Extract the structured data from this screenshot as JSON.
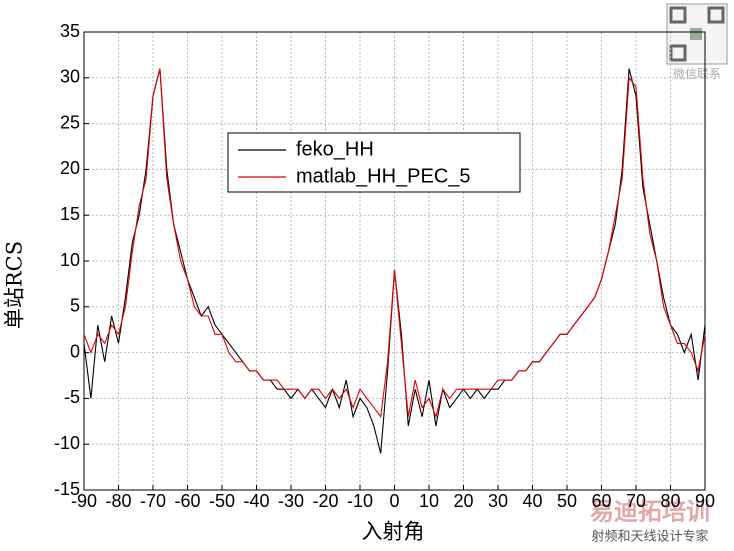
{
  "chart_data": {
    "type": "line",
    "xlabel": "入射角",
    "ylabel": "单站RCS",
    "x": [
      -90,
      -88,
      -86,
      -84,
      -82,
      -80,
      -78,
      -76,
      -74,
      -72,
      -70,
      -68,
      -66,
      -64,
      -62,
      -60,
      -58,
      -56,
      -54,
      -52,
      -50,
      -48,
      -46,
      -44,
      -42,
      -40,
      -38,
      -36,
      -34,
      -32,
      -30,
      -28,
      -26,
      -24,
      -22,
      -20,
      -18,
      -16,
      -14,
      -12,
      -10,
      -8,
      -6,
      -4,
      -2,
      0,
      2,
      4,
      6,
      8,
      10,
      12,
      14,
      16,
      18,
      20,
      22,
      24,
      26,
      28,
      30,
      32,
      34,
      36,
      38,
      40,
      42,
      44,
      46,
      48,
      50,
      52,
      54,
      56,
      58,
      60,
      62,
      64,
      66,
      68,
      70,
      72,
      74,
      76,
      78,
      80,
      82,
      84,
      86,
      88,
      90
    ],
    "series": [
      {
        "name": "feko_HH",
        "color": "#000000",
        "values": [
          1,
          -5,
          3,
          -1,
          4,
          1,
          6,
          12,
          15,
          20,
          28,
          31,
          20,
          14,
          11,
          8,
          6,
          4,
          5,
          3,
          2,
          1,
          0,
          -1,
          -2,
          -2,
          -3,
          -3,
          -4,
          -4,
          -5,
          -4,
          -5,
          -4,
          -5,
          -6,
          -4,
          -6,
          -3,
          -7,
          -5,
          -6,
          -8,
          -11,
          -2,
          9,
          2,
          -8,
          -4,
          -7,
          -3,
          -8,
          -4,
          -6,
          -5,
          -4,
          -5,
          -4,
          -5,
          -4,
          -4,
          -3,
          -3,
          -2,
          -2,
          -1,
          -1,
          0,
          1,
          2,
          2,
          3,
          4,
          5,
          6,
          8,
          11,
          14,
          20,
          31,
          28,
          18,
          14,
          10,
          6,
          3,
          2,
          0,
          2,
          -3,
          3
        ]
      },
      {
        "name": "matlab_HH_PEC_5",
        "color": "#e00000",
        "values": [
          2,
          0,
          2,
          1,
          3,
          2,
          5,
          11,
          16,
          19,
          28,
          31,
          19,
          14,
          10,
          8,
          5,
          4,
          4,
          2,
          2,
          0,
          -1,
          -1,
          -2,
          -2,
          -3,
          -3,
          -3,
          -4,
          -4,
          -4,
          -5,
          -4,
          -4,
          -5,
          -4,
          -5,
          -4,
          -6,
          -4,
          -5,
          -6,
          -7,
          -1,
          9,
          1,
          -7,
          -3,
          -6,
          -5,
          -7,
          -4,
          -5,
          -4,
          -4,
          -4,
          -4,
          -4,
          -4,
          -3,
          -3,
          -3,
          -2,
          -2,
          -1,
          -1,
          0,
          1,
          2,
          2,
          3,
          4,
          5,
          6,
          8,
          11,
          15,
          19,
          30,
          29,
          19,
          13,
          10,
          5,
          3,
          1,
          1,
          0,
          -2,
          2
        ]
      }
    ],
    "xlim": [
      -90,
      90
    ],
    "xticks": [
      -90,
      -80,
      -70,
      -60,
      -50,
      -40,
      -30,
      -20,
      -10,
      0,
      10,
      20,
      30,
      40,
      50,
      60,
      70,
      80,
      90
    ],
    "ylim": [
      -15,
      35
    ],
    "yticks": [
      -15,
      -10,
      -5,
      0,
      5,
      10,
      15,
      20,
      25,
      30,
      35
    ],
    "grid": true,
    "legend": "upper center",
    "watermarks": [
      "微信联系",
      "易迪拓培训",
      "射频和天线设计专家"
    ]
  }
}
